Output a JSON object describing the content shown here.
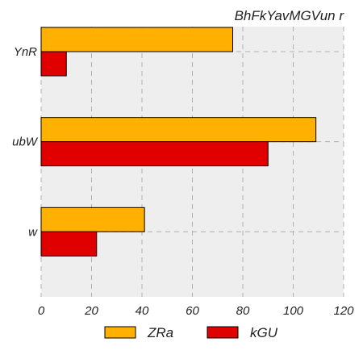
{
  "chart_data": {
    "type": "bar",
    "orientation": "horizontal",
    "title": "BhFkYavMGVun r",
    "categories": [
      "YnR",
      "ubW",
      "w"
    ],
    "series": [
      {
        "name": "ZRa",
        "color": "#FFB000",
        "values": [
          76,
          109,
          41
        ]
      },
      {
        "name": "kGU",
        "color": "#E00000",
        "values": [
          10,
          90,
          22
        ]
      }
    ],
    "xlim": [
      0,
      120
    ],
    "xticks": [
      "0",
      "20",
      "40",
      "60",
      "80",
      "100",
      "120"
    ],
    "grid": true,
    "legend_position": "bottom"
  }
}
